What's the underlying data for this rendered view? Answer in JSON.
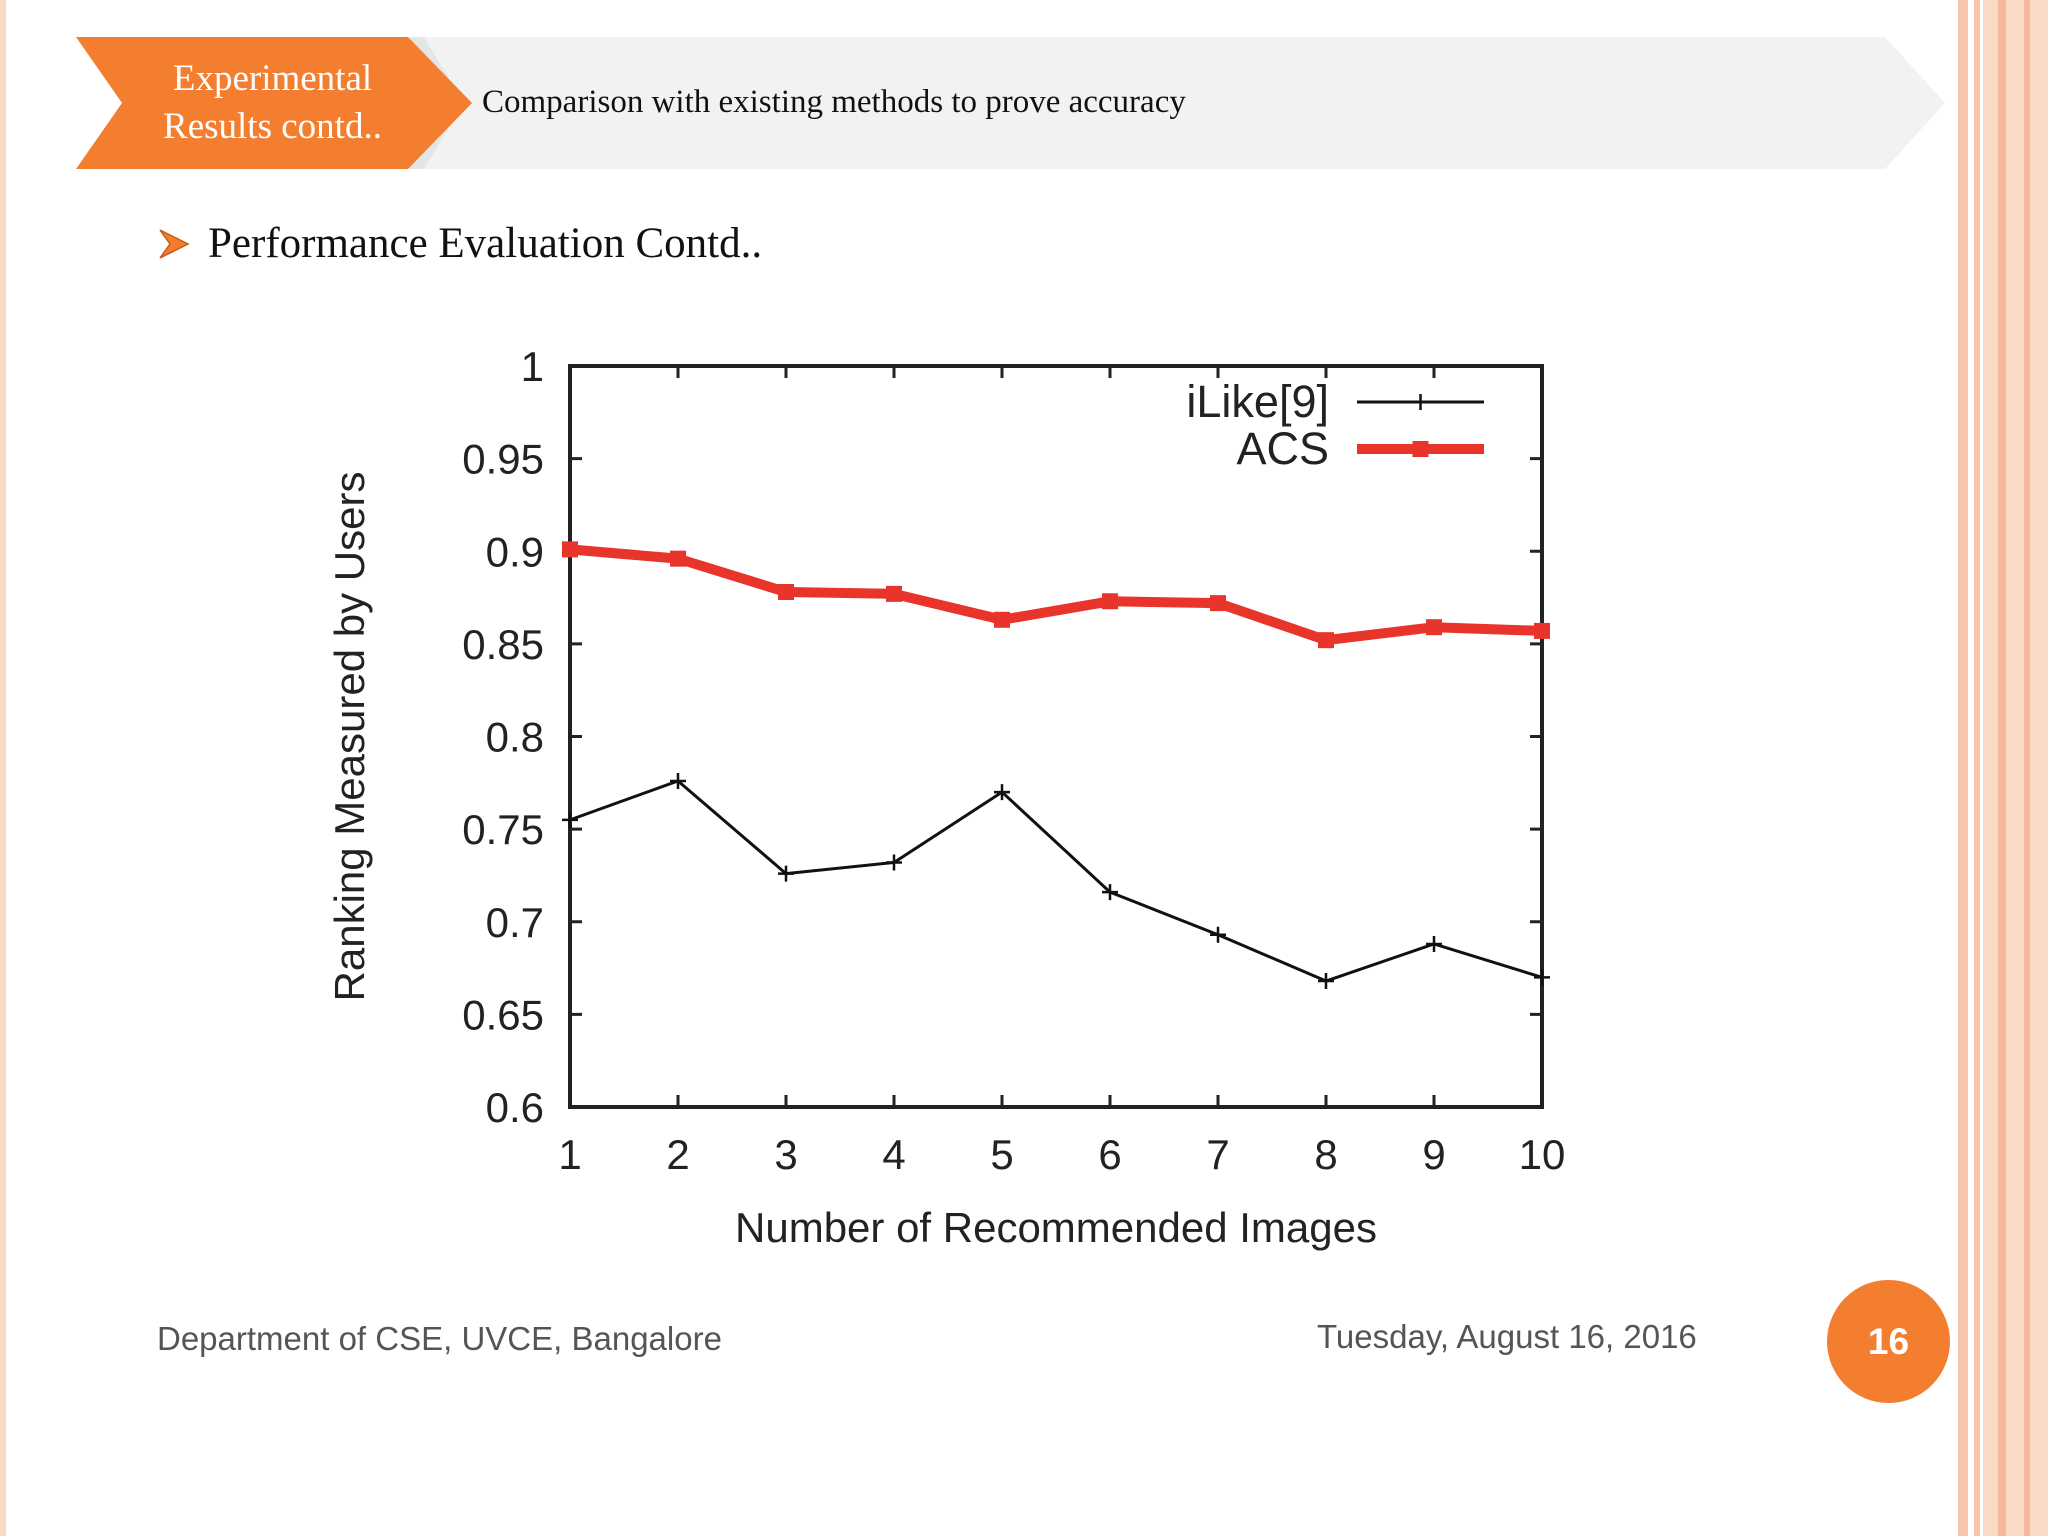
{
  "header": {
    "section_line1": "Experimental",
    "section_line2": "Results contd..",
    "subtitle": "Comparison with existing methods to prove accuracy"
  },
  "bullet": {
    "icon": "arrow-bullet-icon",
    "text": "Performance Evaluation Contd.."
  },
  "footer": {
    "department": "Department of CSE, UVCE, Bangalore",
    "date": "Tuesday, August 16, 2016",
    "page_number": "16"
  },
  "colors": {
    "accent": "#f47e30",
    "acs_series": "#e8342a",
    "ilike_series": "#111111"
  },
  "chart_data": {
    "type": "line",
    "title": "",
    "xlabel": "Number of Recommended Images",
    "ylabel": "Ranking Measured by Users",
    "x": [
      1,
      2,
      3,
      4,
      5,
      6,
      7,
      8,
      9,
      10
    ],
    "xlim": [
      1,
      10
    ],
    "ylim": [
      0.6,
      1
    ],
    "x_ticks": [
      "1",
      "2",
      "3",
      "4",
      "5",
      "6",
      "7",
      "8",
      "9",
      "10"
    ],
    "y_ticks": [
      "0.6",
      "0.65",
      "0.7",
      "0.75",
      "0.8",
      "0.85",
      "0.9",
      "0.95",
      "1"
    ],
    "grid": false,
    "legend_position": "top-right",
    "series": [
      {
        "name": "iLike[9]",
        "marker": "plus",
        "values": [
          0.755,
          0.776,
          0.726,
          0.732,
          0.77,
          0.716,
          0.693,
          0.668,
          0.688,
          0.67
        ]
      },
      {
        "name": "ACS",
        "marker": "square",
        "values": [
          0.901,
          0.896,
          0.878,
          0.877,
          0.863,
          0.873,
          0.872,
          0.852,
          0.859,
          0.857
        ]
      }
    ]
  }
}
